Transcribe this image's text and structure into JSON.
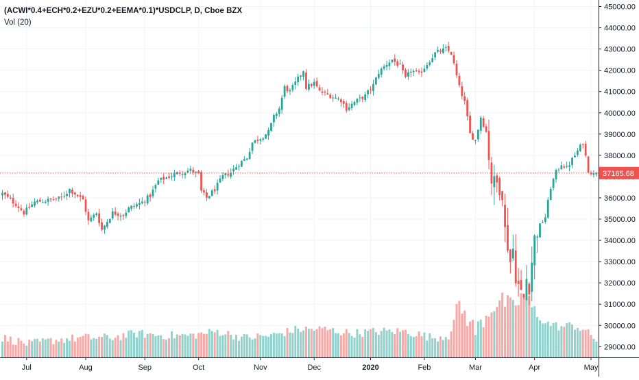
{
  "header": {
    "symbol_title": "(ACWI*0.4+ECH*0.2+EZU*0.2+EEMA*0.1)*USDCLP, D, Cboe BZX",
    "volume_label": "Vol (20)"
  },
  "colors": {
    "up": "#26a69a",
    "down": "#ef5350",
    "up_volume": "#92d2cc",
    "down_volume": "#f7a9a7",
    "grid": "#f0f3fa",
    "axis_text": "#131722",
    "price_line": "#ef5350"
  },
  "chart_data": {
    "type": "candlestick",
    "title": "(ACWI*0.4+ECH*0.2+EZU*0.2+EEMA*0.1)*USDCLP, D, Cboe BZX",
    "y_axis": {
      "position": "right",
      "ylim": [
        28500,
        45300
      ],
      "ticks": [
        "45000.00",
        "44000.00",
        "43000.00",
        "42000.00",
        "41000.00",
        "40000.00",
        "39000.00",
        "38000.00",
        "37000.00",
        "36000.00",
        "35000.00",
        "34000.00",
        "33000.00",
        "32000.00",
        "31000.00",
        "30000.00",
        "29000.00"
      ]
    },
    "x_axis": {
      "ticks": [
        {
          "label": "Jul",
          "bar": 9
        },
        {
          "label": "Aug",
          "bar": 31
        },
        {
          "label": "Sep",
          "bar": 53
        },
        {
          "label": "Oct",
          "bar": 73
        },
        {
          "label": "Nov",
          "bar": 96
        },
        {
          "label": "Dec",
          "bar": 116
        },
        {
          "label": "2020",
          "bar": 137,
          "bold": true
        },
        {
          "label": "Feb",
          "bar": 157
        },
        {
          "label": "Mar",
          "bar": 176
        },
        {
          "label": "Apr",
          "bar": 198
        },
        {
          "label": "May",
          "bar": 219
        }
      ]
    },
    "last_price": 37165.68,
    "last_price_label": "37165.68",
    "grid": true,
    "volume_indicator": "Vol (20)",
    "close_anchors": [
      [
        0,
        36200
      ],
      [
        5,
        35700
      ],
      [
        8,
        35300
      ],
      [
        12,
        35800
      ],
      [
        18,
        35900
      ],
      [
        22,
        36000
      ],
      [
        25,
        36400
      ],
      [
        30,
        35900
      ],
      [
        32,
        34900
      ],
      [
        35,
        35300
      ],
      [
        37,
        34500
      ],
      [
        41,
        35300
      ],
      [
        45,
        35200
      ],
      [
        47,
        35500
      ],
      [
        52,
        35800
      ],
      [
        55,
        36100
      ],
      [
        58,
        36800
      ],
      [
        62,
        37000
      ],
      [
        66,
        37200
      ],
      [
        70,
        37300
      ],
      [
        73,
        37100
      ],
      [
        74,
        36300
      ],
      [
        76,
        36000
      ],
      [
        79,
        36400
      ],
      [
        82,
        37000
      ],
      [
        85,
        37200
      ],
      [
        88,
        37600
      ],
      [
        91,
        37900
      ],
      [
        93,
        38600
      ],
      [
        97,
        38900
      ],
      [
        99,
        39100
      ],
      [
        101,
        39800
      ],
      [
        103,
        40200
      ],
      [
        105,
        41200
      ],
      [
        107,
        41000
      ],
      [
        110,
        41600
      ],
      [
        112,
        42000
      ],
      [
        113,
        41200
      ],
      [
        116,
        41400
      ],
      [
        118,
        41000
      ],
      [
        122,
        40800
      ],
      [
        126,
        40600
      ],
      [
        128,
        40200
      ],
      [
        131,
        40500
      ],
      [
        135,
        40800
      ],
      [
        138,
        41300
      ],
      [
        140,
        41900
      ],
      [
        143,
        42300
      ],
      [
        145,
        42500
      ],
      [
        148,
        42200
      ],
      [
        150,
        41600
      ],
      [
        152,
        42000
      ],
      [
        155,
        41800
      ],
      [
        158,
        42300
      ],
      [
        161,
        42800
      ],
      [
        163,
        42900
      ],
      [
        165,
        43000
      ],
      [
        167,
        42800
      ],
      [
        170,
        41200
      ],
      [
        172,
        40500
      ],
      [
        174,
        39000
      ],
      [
        176,
        38700
      ],
      [
        178,
        39800
      ],
      [
        180,
        39100
      ],
      [
        182,
        36800
      ],
      [
        184,
        36700
      ],
      [
        186,
        36200
      ],
      [
        187,
        34500
      ],
      [
        189,
        33000
      ],
      [
        190,
        33600
      ],
      [
        191,
        32300
      ],
      [
        193,
        31500
      ],
      [
        194,
        31300
      ],
      [
        195,
        32200
      ],
      [
        196,
        31800
      ],
      [
        197,
        33000
      ],
      [
        198,
        34100
      ],
      [
        200,
        34700
      ],
      [
        202,
        35100
      ],
      [
        204,
        36500
      ],
      [
        206,
        37200
      ],
      [
        208,
        37600
      ],
      [
        210,
        37400
      ],
      [
        212,
        37800
      ],
      [
        214,
        38200
      ],
      [
        216,
        38600
      ],
      [
        218,
        37300
      ],
      [
        220,
        37100
      ],
      [
        221,
        37166
      ]
    ],
    "volume_anchors": [
      [
        0,
        29400
      ],
      [
        10,
        29100
      ],
      [
        20,
        29300
      ],
      [
        30,
        29400
      ],
      [
        40,
        29400
      ],
      [
        50,
        29600
      ],
      [
        60,
        29500
      ],
      [
        70,
        29500
      ],
      [
        80,
        29700
      ],
      [
        90,
        29400
      ],
      [
        100,
        29500
      ],
      [
        110,
        29800
      ],
      [
        120,
        29800
      ],
      [
        130,
        29600
      ],
      [
        140,
        29700
      ],
      [
        150,
        29700
      ],
      [
        160,
        29400
      ],
      [
        166,
        29500
      ],
      [
        170,
        30900
      ],
      [
        176,
        29700
      ],
      [
        182,
        30800
      ],
      [
        186,
        31100
      ],
      [
        190,
        30800
      ],
      [
        194,
        31400
      ],
      [
        198,
        30600
      ],
      [
        202,
        30100
      ],
      [
        208,
        29900
      ],
      [
        212,
        30000
      ],
      [
        216,
        29800
      ],
      [
        218,
        29600
      ],
      [
        221,
        29300
      ]
    ]
  }
}
